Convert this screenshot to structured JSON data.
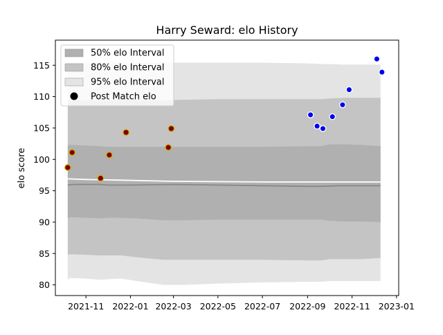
{
  "chart_data": {
    "type": "scatter",
    "title": "Harry Seward: elo History",
    "ylabel": "elo score",
    "xlabel": "",
    "xlim": [
      "2021-09-20",
      "2023-01-04"
    ],
    "ylim": [
      78.3,
      119.0
    ],
    "grid": false,
    "legend_position": "top-left",
    "x_ticks": [
      "2021-11-01",
      "2022-01-01",
      "2022-03-01",
      "2022-05-01",
      "2022-07-01",
      "2022-09-01",
      "2022-11-01",
      "2023-01-01"
    ],
    "x_tick_labels": [
      "2021-11",
      "2022-01",
      "2022-03",
      "2022-05",
      "2022-07",
      "2022-09",
      "2022-11",
      "2023-01"
    ],
    "y_ticks": [
      80,
      85,
      90,
      95,
      100,
      105,
      110,
      115
    ],
    "legend": [
      {
        "label": "50% elo Interval",
        "color": "#b0b0b0",
        "kind": "band"
      },
      {
        "label": "80% elo Interval",
        "color": "#c4c4c4",
        "kind": "band"
      },
      {
        "label": "95% elo Interval",
        "color": "#e4e4e4",
        "kind": "band"
      },
      {
        "label": "Post Match elo",
        "color": "#000000",
        "kind": "marker"
      }
    ],
    "bands": {
      "x": [
        "2021-10-07",
        "2021-10-10",
        "2021-11-01",
        "2021-11-20",
        "2021-12-01",
        "2021-12-20",
        "2022-01-10",
        "2022-02-15",
        "2022-03-15",
        "2022-05-01",
        "2022-07-01",
        "2022-09-01",
        "2022-09-20",
        "2022-10-01",
        "2022-10-20",
        "2022-11-15",
        "2022-12-10"
      ],
      "p95_low": [
        80.8,
        81.1,
        81.0,
        80.8,
        80.9,
        81.0,
        80.6,
        80.0,
        80.0,
        80.2,
        80.4,
        80.5,
        80.5,
        80.6,
        80.6,
        80.6,
        80.6
      ],
      "p80_low": [
        84.8,
        84.9,
        84.8,
        84.7,
        84.7,
        84.7,
        84.4,
        84.0,
        84.0,
        84.0,
        84.0,
        83.9,
        83.9,
        84.1,
        84.1,
        84.1,
        84.3
      ],
      "p50_low": [
        90.6,
        90.8,
        90.7,
        90.6,
        90.7,
        90.7,
        90.6,
        90.3,
        90.3,
        90.4,
        90.4,
        90.4,
        90.4,
        90.2,
        90.1,
        90.1,
        90.0
      ],
      "p50_high": [
        102.2,
        102.3,
        102.2,
        102.1,
        102.0,
        102.0,
        102.0,
        102.0,
        102.0,
        102.0,
        102.0,
        102.1,
        102.1,
        102.4,
        102.4,
        102.3,
        102.1
      ],
      "p80_high": [
        109.4,
        109.4,
        109.4,
        109.4,
        109.4,
        109.4,
        109.4,
        109.4,
        109.5,
        109.6,
        109.6,
        109.6,
        109.6,
        109.7,
        109.8,
        109.8,
        109.8
      ],
      "p95_high": [
        115.4,
        115.4,
        115.4,
        115.4,
        115.4,
        115.4,
        115.4,
        115.4,
        115.4,
        115.4,
        115.4,
        115.3,
        115.2,
        115.2,
        115.1,
        115.1,
        115.1
      ]
    },
    "lines": [
      {
        "color": "#ffffff",
        "x": [
          "2021-10-07",
          "2021-11-01",
          "2021-12-15",
          "2022-03-01",
          "2022-07-01",
          "2022-09-15",
          "2022-12-10"
        ],
        "values": [
          96.9,
          96.8,
          96.7,
          96.5,
          96.4,
          96.4,
          96.4
        ]
      },
      {
        "color": "#888888",
        "x": [
          "2021-10-07",
          "2021-10-15",
          "2021-11-20",
          "2021-12-01",
          "2022-01-01",
          "2022-03-01",
          "2022-05-01",
          "2022-07-01",
          "2022-09-01",
          "2022-09-20",
          "2022-10-15",
          "2022-12-10"
        ],
        "values": [
          95.9,
          96.0,
          96.0,
          95.9,
          95.9,
          96.0,
          95.9,
          95.8,
          95.7,
          95.7,
          95.8,
          95.8
        ]
      }
    ],
    "series": [
      {
        "color": "#7a0000",
        "edge": "#d4aa00",
        "x": [
          "2021-10-07",
          "2021-10-13",
          "2021-11-21",
          "2021-12-03",
          "2021-12-26",
          "2022-02-22",
          "2022-02-26"
        ],
        "values": [
          98.7,
          101.1,
          97.0,
          100.7,
          104.3,
          101.9,
          104.9
        ]
      },
      {
        "color": "#0000ee",
        "edge": "#ffffff",
        "x": [
          "2022-09-05",
          "2022-09-14",
          "2022-09-22",
          "2022-10-05",
          "2022-10-19",
          "2022-10-28",
          "2022-12-05",
          "2022-12-12"
        ],
        "values": [
          107.1,
          105.3,
          104.9,
          106.8,
          108.7,
          111.1,
          116.0,
          113.9
        ]
      }
    ]
  }
}
